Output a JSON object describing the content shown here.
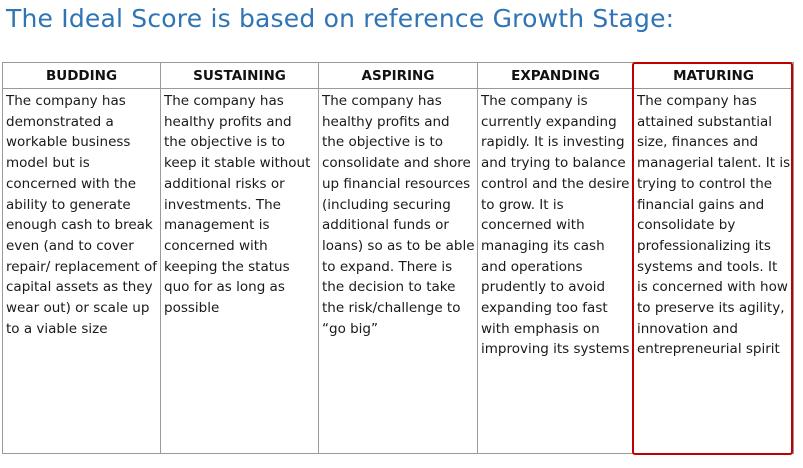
{
  "title": "The Ideal Score is based on reference Growth Stage:",
  "stages": [
    {
      "name": "BUDDING",
      "text": "The company has demonstrated a workable business model but is concerned with the ability to generate enough cash to break even (and to cover repair/ replacement of capital assets as they wear out) or scale up to a viable size"
    },
    {
      "name": "SUSTAINING",
      "text": "The company has healthy profits and the objective is to keep it stable without additional risks or investments. The management is concerned with keeping the status quo for as long as possible"
    },
    {
      "name": "ASPIRING",
      "text": "The company has healthy profits and the objective is to consolidate and shore up financial resources (including securing additional funds or loans) so as to be able to expand. There is the decision to take the risk/challenge to “go big”"
    },
    {
      "name": "EXPANDING",
      "text": "The company is currently expanding rapidly. It is investing and trying to balance control and the desire to grow. It is concerned with managing its cash and operations prudently to avoid expanding too fast with emphasis on improving its systems"
    },
    {
      "name": "MATURING",
      "text": "The company has attained substantial size, finances and managerial talent. It is trying to control the financial gains and consolidate by professionalizing its systems and tools. It is concerned with how to preserve its agility, innovation and entrepreneurial spirit"
    }
  ],
  "highlighted_stage": "MATURING",
  "colors": {
    "title": "#2f74b5",
    "highlight_border": "#c00000",
    "grid_line": "#9a9a9a"
  }
}
